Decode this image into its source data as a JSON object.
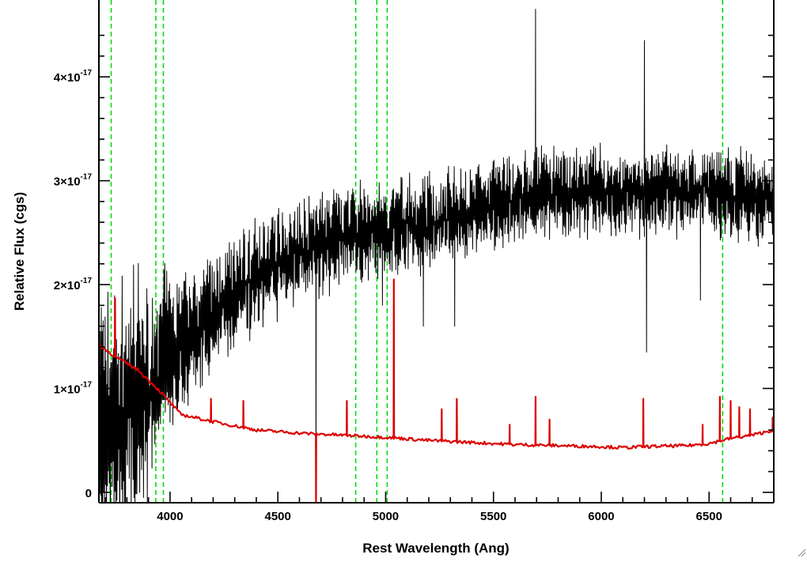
{
  "chart_data": {
    "type": "line",
    "title": "",
    "xlabel": "Rest Wavelength (Ang)",
    "ylabel": "Relative Flux (cgs)",
    "xlim": [
      3670,
      6800
    ],
    "ylim": [
      -1e-18,
      4.74e-17
    ],
    "x_ticks": [
      {
        "value": 4000,
        "label": "4000"
      },
      {
        "value": 4500,
        "label": "4500"
      },
      {
        "value": 5000,
        "label": "5000"
      },
      {
        "value": 5500,
        "label": "5500"
      },
      {
        "value": 6000,
        "label": "6000"
      },
      {
        "value": 6500,
        "label": "6500"
      }
    ],
    "y_ticks": [
      {
        "value": 0,
        "mantissa": "0",
        "exponent": ""
      },
      {
        "value": 1e-17,
        "mantissa": "1×10",
        "exponent": "-17"
      },
      {
        "value": 2e-17,
        "mantissa": "2×10",
        "exponent": "-17"
      },
      {
        "value": 3e-17,
        "mantissa": "3×10",
        "exponent": "-17"
      },
      {
        "value": 4e-17,
        "mantissa": "4×10",
        "exponent": "-17"
      }
    ],
    "grid": false,
    "vertical_lines": {
      "color": "#00dd00",
      "style": "dashed",
      "x": [
        3727,
        3934,
        3969,
        4861,
        4959,
        5007,
        6563
      ]
    },
    "series": [
      {
        "color": "#000000",
        "units": "1e-17 cgs",
        "continuum_knots": [
          [
            3670,
            0.85
          ],
          [
            3800,
            0.75
          ],
          [
            3900,
            1.05
          ],
          [
            4000,
            1.38
          ],
          [
            4100,
            1.55
          ],
          [
            4200,
            1.72
          ],
          [
            4300,
            1.9
          ],
          [
            4400,
            2.08
          ],
          [
            4500,
            2.2
          ],
          [
            4600,
            2.35
          ],
          [
            4700,
            2.4
          ],
          [
            4800,
            2.45
          ],
          [
            4900,
            2.5
          ],
          [
            5000,
            2.55
          ],
          [
            5100,
            2.55
          ],
          [
            5200,
            2.58
          ],
          [
            5300,
            2.65
          ],
          [
            5400,
            2.7
          ],
          [
            5500,
            2.75
          ],
          [
            5600,
            2.82
          ],
          [
            5700,
            2.85
          ],
          [
            5800,
            2.88
          ],
          [
            5900,
            2.9
          ],
          [
            6000,
            2.9
          ],
          [
            6100,
            2.88
          ],
          [
            6200,
            2.85
          ],
          [
            6300,
            2.9
          ],
          [
            6400,
            2.92
          ],
          [
            6500,
            2.92
          ],
          [
            6600,
            2.88
          ],
          [
            6700,
            2.85
          ],
          [
            6800,
            2.8
          ]
        ],
        "noise_knots": [
          [
            3670,
            0.9
          ],
          [
            3800,
            0.9
          ],
          [
            3950,
            0.6
          ],
          [
            4100,
            0.42
          ],
          [
            4400,
            0.36
          ],
          [
            5000,
            0.32
          ],
          [
            6000,
            0.3
          ],
          [
            6800,
            0.3
          ]
        ],
        "features": [
          {
            "x": 4677,
            "y": -0.2
          },
          {
            "x": 4985,
            "y": 1.8
          },
          {
            "x": 5175,
            "y": 1.6
          },
          {
            "x": 5320,
            "y": 1.6
          },
          {
            "x": 5695,
            "y": 4.65
          },
          {
            "x": 6200,
            "y": 4.35
          },
          {
            "x": 6210,
            "y": 1.35
          },
          {
            "x": 6460,
            "y": 1.85
          }
        ]
      },
      {
        "color": "#dd0000",
        "units": "1e-17 cgs",
        "continuum_knots": [
          [
            3670,
            1.42
          ],
          [
            3750,
            1.3
          ],
          [
            3850,
            1.18
          ],
          [
            3950,
            0.98
          ],
          [
            4050,
            0.75
          ],
          [
            4200,
            0.68
          ],
          [
            4400,
            0.6
          ],
          [
            4600,
            0.57
          ],
          [
            4800,
            0.55
          ],
          [
            5000,
            0.53
          ],
          [
            5200,
            0.5
          ],
          [
            5400,
            0.48
          ],
          [
            5600,
            0.46
          ],
          [
            5800,
            0.45
          ],
          [
            6000,
            0.44
          ],
          [
            6100,
            0.43
          ],
          [
            6200,
            0.44
          ],
          [
            6400,
            0.45
          ],
          [
            6500,
            0.47
          ],
          [
            6600,
            0.52
          ],
          [
            6700,
            0.55
          ],
          [
            6800,
            0.6
          ]
        ],
        "features": [
          {
            "x": 3745,
            "y": 1.87
          },
          {
            "x": 4190,
            "y": 0.9
          },
          {
            "x": 4340,
            "y": 0.88
          },
          {
            "x": 4677,
            "y": -0.1
          },
          {
            "x": 4820,
            "y": 0.88
          },
          {
            "x": 5038,
            "y": 2.05
          },
          {
            "x": 5260,
            "y": 0.8
          },
          {
            "x": 5330,
            "y": 0.9
          },
          {
            "x": 5575,
            "y": 0.65
          },
          {
            "x": 5695,
            "y": 0.92
          },
          {
            "x": 5760,
            "y": 0.7
          },
          {
            "x": 6195,
            "y": 0.9
          },
          {
            "x": 6470,
            "y": 0.65
          },
          {
            "x": 6550,
            "y": 0.92
          },
          {
            "x": 6600,
            "y": 0.88
          },
          {
            "x": 6640,
            "y": 0.82
          },
          {
            "x": 6690,
            "y": 0.8
          },
          {
            "x": 6795,
            "y": 0.72
          }
        ]
      }
    ]
  }
}
